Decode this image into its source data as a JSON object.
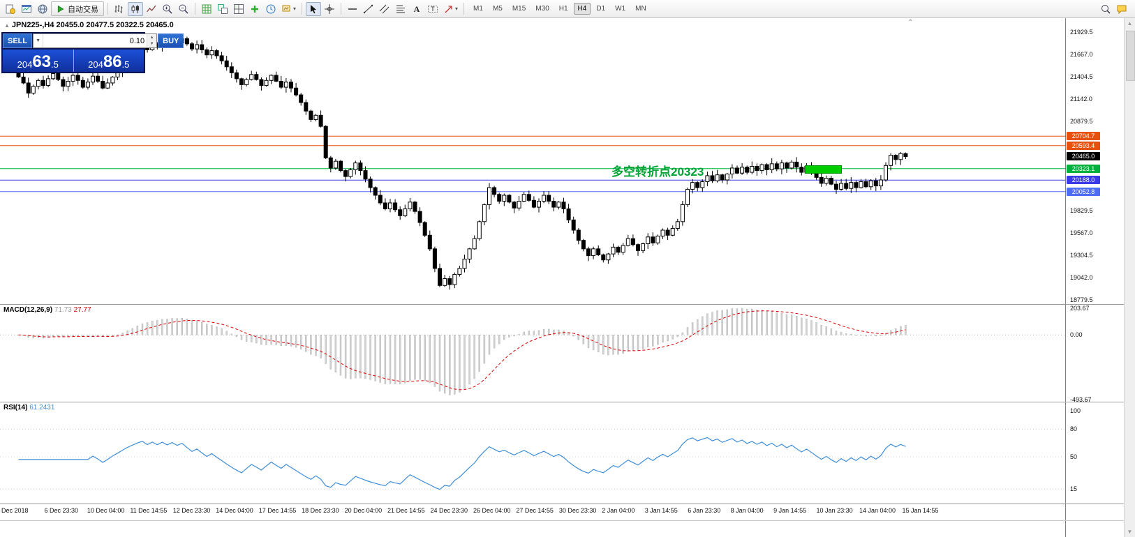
{
  "toolbar": {
    "algo_trading": "自动交易",
    "timeframes": [
      "M1",
      "M5",
      "M15",
      "M30",
      "H1",
      "H4",
      "D1",
      "W1",
      "MN"
    ],
    "active_timeframe": "H4"
  },
  "trade_panel": {
    "sell_label": "SELL",
    "buy_label": "BUY",
    "volume": "0.10",
    "sell_price_small": "204",
    "sell_price_big": "63",
    "sell_price_frac": ".5",
    "buy_price_small": "204",
    "buy_price_big": "86",
    "buy_price_frac": ".5"
  },
  "chart": {
    "header": "JPN225-,H4  20455.0 20477.5 20322.5 20465.0",
    "annotation": {
      "text": "多空转折点20323",
      "color": "#00a335"
    },
    "highlight_rect_color": "#00cc00"
  },
  "price_scale": {
    "ticks": [
      "21929.5",
      "21667.0",
      "21404.5",
      "21142.0",
      "20879.5",
      "19829.5",
      "19567.0",
      "19304.5",
      "19042.0",
      "18779.5"
    ],
    "badges": [
      {
        "value": "20704.7",
        "color": "#e8500f",
        "line": true
      },
      {
        "value": "20593.4",
        "color": "#e8500f",
        "line": true
      },
      {
        "value": "20465.0",
        "color": "#000000",
        "line": false
      },
      {
        "value": "20323.1",
        "color": "#00b23c",
        "line": true
      },
      {
        "value": "20188.0",
        "color": "#3a3ae8",
        "line": true
      },
      {
        "value": "20052.8",
        "color": "#4d6df2",
        "line": true
      }
    ]
  },
  "chart_data": {
    "type": "candlestick",
    "symbol": "JPN225-",
    "timeframe": "H4",
    "ohlc_header": {
      "open": 20455.0,
      "high": 20477.5,
      "low": 20322.5,
      "close": 20465.0
    },
    "ylim": [
      18731,
      22092
    ],
    "price_levels": [
      20704.7,
      20593.4,
      20323.1,
      20188.0,
      20052.8
    ],
    "current_price": 20465.0,
    "closes": [
      21400,
      21330,
      21210,
      21290,
      21360,
      21300,
      21380,
      21440,
      21370,
      21290,
      21350,
      21420,
      21360,
      21280,
      21340,
      21410,
      21350,
      21270,
      21330,
      21400,
      21460,
      21530,
      21600,
      21660,
      21720,
      21770,
      21720,
      21790,
      21750,
      21820,
      21780,
      21840,
      21800,
      21850,
      21790,
      21730,
      21780,
      21720,
      21660,
      21710,
      21650,
      21590,
      21520,
      21450,
      21380,
      21310,
      21370,
      21430,
      21370,
      21300,
      21360,
      21420,
      21350,
      21280,
      21340,
      21270,
      21190,
      21100,
      21000,
      20900,
      20950,
      20820,
      20450,
      20330,
      20410,
      20300,
      20230,
      20310,
      20390,
      20300,
      20200,
      20100,
      20010,
      19920,
      19850,
      19920,
      19840,
      19770,
      19850,
      19930,
      19820,
      19690,
      19540,
      19380,
      19150,
      18950,
      19030,
      18960,
      19080,
      19150,
      19260,
      19380,
      19500,
      19700,
      19900,
      20100,
      20020,
      19940,
      20010,
      19930,
      19860,
      19940,
      20020,
      19950,
      19870,
      19940,
      20010,
      19940,
      19870,
      19930,
      19850,
      19720,
      19600,
      19480,
      19380,
      19300,
      19380,
      19310,
      19250,
      19320,
      19400,
      19340,
      19420,
      19500,
      19430,
      19360,
      19440,
      19520,
      19450,
      19530,
      19600,
      19540,
      19620,
      19700,
      19900,
      20080,
      20160,
      20100,
      20170,
      20240,
      20180,
      20250,
      20190,
      20260,
      20330,
      20270,
      20340,
      20280,
      20350,
      20300,
      20370,
      20310,
      20380,
      20320,
      20390,
      20330,
      20400,
      20340,
      20280,
      20350,
      20290,
      20220,
      20150,
      20210,
      20140,
      20080,
      20150,
      20090,
      20160,
      20100,
      20170,
      20110,
      20180,
      20120,
      20190,
      20360,
      20480,
      20430,
      20500,
      20465
    ]
  },
  "macd": {
    "name": "MACD(12,26,9)",
    "value_main": "71.73",
    "value_signal": "27.77",
    "settings": "12,26,9",
    "ylim": [
      -510,
      230
    ],
    "axis_ticks": [
      {
        "label": "203.67",
        "value": 203.67
      },
      {
        "label": "0.00",
        "value": 0
      },
      {
        "label": "-493.67",
        "value": -493.67
      }
    ],
    "histogram_color": "#d2d2d2",
    "histogram_border": "#ababab",
    "signal_color": "#dd0000"
  },
  "rsi": {
    "name": "RSI(14)",
    "value": "61.2431",
    "settings": "14",
    "line_color": "#3e8ed8",
    "levels": [
      80,
      50,
      15
    ],
    "axis_ticks": [
      {
        "label": "100",
        "value": 100
      },
      {
        "label": "80",
        "value": 80
      },
      {
        "label": "50",
        "value": 50
      },
      {
        "label": "15",
        "value": 15
      }
    ]
  },
  "time_axis": [
    "Dec 2018",
    "6 Dec 23:30",
    "10 Dec 04:00",
    "11 Dec 14:55",
    "12 Dec 23:30",
    "14 Dec 04:00",
    "17 Dec 14:55",
    "18 Dec 23:30",
    "20 Dec 04:00",
    "21 Dec 14:55",
    "24 Dec 23:30",
    "26 Dec 04:00",
    "27 Dec 14:55",
    "30 Dec 23:30",
    "2 Jan 04:00",
    "3 Jan 14:55",
    "6 Jan 23:30",
    "8 Jan 04:00",
    "9 Jan 14:55",
    "10 Jan 23:30",
    "14 Jan 04:00",
    "15 Jan 14:55"
  ]
}
